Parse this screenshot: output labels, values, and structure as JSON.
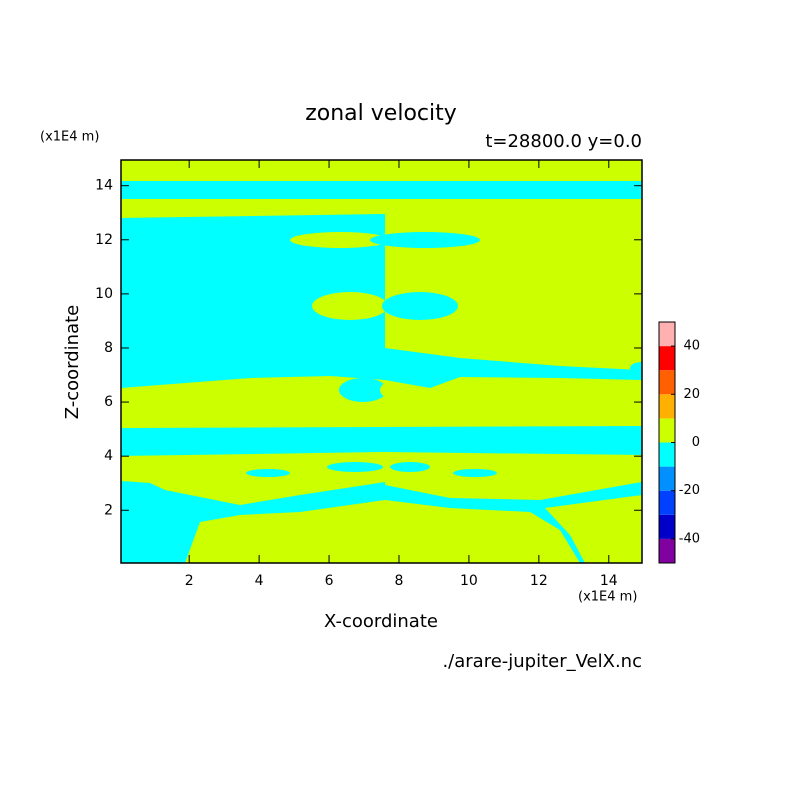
{
  "chart_data": {
    "type": "contour",
    "title": "zonal velocity",
    "subtitle": "t=28800.0 y=0.0",
    "xlabel": "X-coordinate",
    "ylabel": "Z-coordinate",
    "xunit": "(x1E4 m)",
    "yunit": "(x1E4 m)",
    "source": "./arare-jupiter_VelX.nc",
    "xlim": [
      0.05,
      14.95
    ],
    "ylim": [
      0.05,
      14.95
    ],
    "xticks": [
      2,
      4,
      6,
      8,
      10,
      12,
      14
    ],
    "yticks": [
      2,
      4,
      6,
      8,
      10,
      12,
      14
    ],
    "colorbar": {
      "bounds": [
        -50,
        -40,
        -30,
        -20,
        -10,
        0,
        10,
        20,
        30,
        40,
        50
      ],
      "colors": [
        "#8000a0",
        "#0000c8",
        "#0040ff",
        "#0090ff",
        "#00ffff",
        "#ccff00",
        "#ffb000",
        "#ff6000",
        "#ff0000",
        "#ffb0b0"
      ],
      "ticks": [
        -40,
        -20,
        0,
        20,
        40
      ]
    }
  }
}
